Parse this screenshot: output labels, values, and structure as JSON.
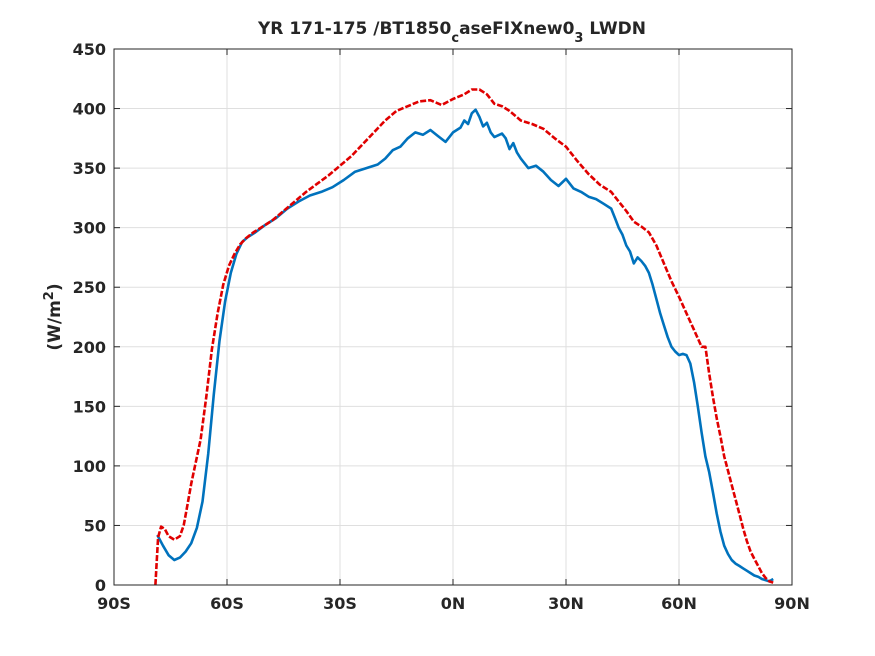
{
  "chart_data": {
    "type": "line",
    "title_main": "YR 171-175 /BT1850",
    "title_sub1": "c",
    "title_mid": "aseFIXnew0",
    "title_sub2": "3",
    "title_end": " LWDN",
    "xlabel": "",
    "ylabel_prefix": "(W/m",
    "ylabel_sup": "2",
    "ylabel_suffix": ")",
    "xlim": [
      -90,
      90
    ],
    "ylim": [
      0,
      450
    ],
    "grid": true,
    "xticks": [
      {
        "value": -90,
        "label": "90S"
      },
      {
        "value": -60,
        "label": "60S"
      },
      {
        "value": -30,
        "label": "30S"
      },
      {
        "value": 0,
        "label": "0N"
      },
      {
        "value": 30,
        "label": "30N"
      },
      {
        "value": 60,
        "label": "60N"
      },
      {
        "value": 90,
        "label": "90N"
      }
    ],
    "yticks": [
      0,
      50,
      100,
      150,
      200,
      250,
      300,
      350,
      400,
      450
    ],
    "series": [
      {
        "color": "#0072bd",
        "dash": "solid",
        "points": [
          [
            -78.5,
            42
          ],
          [
            -77,
            33
          ],
          [
            -75.5,
            25
          ],
          [
            -74,
            21
          ],
          [
            -72.5,
            23
          ],
          [
            -71,
            28
          ],
          [
            -69.5,
            35
          ],
          [
            -68,
            48
          ],
          [
            -66.5,
            70
          ],
          [
            -65,
            110
          ],
          [
            -63.5,
            160
          ],
          [
            -62,
            205
          ],
          [
            -60.5,
            238
          ],
          [
            -59,
            262
          ],
          [
            -57.5,
            278
          ],
          [
            -56,
            288
          ],
          [
            -54.5,
            292
          ],
          [
            -52.5,
            296
          ],
          [
            -50,
            302
          ],
          [
            -47,
            308
          ],
          [
            -44,
            316
          ],
          [
            -41,
            322
          ],
          [
            -38,
            327
          ],
          [
            -35,
            330
          ],
          [
            -32,
            334
          ],
          [
            -29,
            340
          ],
          [
            -26,
            347
          ],
          [
            -23,
            350
          ],
          [
            -20,
            353
          ],
          [
            -18,
            358
          ],
          [
            -16,
            365
          ],
          [
            -14,
            368
          ],
          [
            -12,
            375
          ],
          [
            -10,
            380
          ],
          [
            -8,
            378
          ],
          [
            -6,
            382
          ],
          [
            -4,
            377
          ],
          [
            -2,
            372
          ],
          [
            0,
            380
          ],
          [
            2,
            384
          ],
          [
            3,
            390
          ],
          [
            4,
            387
          ],
          [
            5,
            396
          ],
          [
            6,
            399
          ],
          [
            7,
            393
          ],
          [
            8,
            385
          ],
          [
            9,
            388
          ],
          [
            10,
            380
          ],
          [
            11,
            376
          ],
          [
            13,
            379
          ],
          [
            14,
            375
          ],
          [
            15,
            366
          ],
          [
            16,
            371
          ],
          [
            17,
            363
          ],
          [
            18,
            358
          ],
          [
            20,
            350
          ],
          [
            22,
            352
          ],
          [
            24,
            347
          ],
          [
            26,
            340
          ],
          [
            28,
            335
          ],
          [
            30,
            341
          ],
          [
            32,
            333
          ],
          [
            34,
            330
          ],
          [
            36,
            326
          ],
          [
            38,
            324
          ],
          [
            40,
            320
          ],
          [
            42,
            316
          ],
          [
            43,
            308
          ],
          [
            44,
            300
          ],
          [
            45,
            294
          ],
          [
            46,
            285
          ],
          [
            47,
            280
          ],
          [
            48,
            270
          ],
          [
            49,
            275
          ],
          [
            50,
            272
          ],
          [
            51,
            268
          ],
          [
            52,
            262
          ],
          [
            53,
            252
          ],
          [
            54,
            240
          ],
          [
            55,
            228
          ],
          [
            56,
            218
          ],
          [
            57,
            208
          ],
          [
            58,
            200
          ],
          [
            59,
            196
          ],
          [
            60,
            193
          ],
          [
            61,
            194
          ],
          [
            62,
            193
          ],
          [
            63,
            186
          ],
          [
            64,
            170
          ],
          [
            65,
            150
          ],
          [
            66,
            128
          ],
          [
            67,
            108
          ],
          [
            68,
            95
          ],
          [
            69,
            78
          ],
          [
            70,
            60
          ],
          [
            71,
            45
          ],
          [
            72,
            33
          ],
          [
            73,
            26
          ],
          [
            74,
            21
          ],
          [
            75,
            18
          ],
          [
            76,
            16
          ],
          [
            77,
            14
          ],
          [
            78,
            12
          ],
          [
            79,
            10
          ],
          [
            80,
            8
          ],
          [
            81,
            7
          ],
          [
            82,
            5
          ],
          [
            83,
            4
          ],
          [
            84,
            3
          ],
          [
            85,
            5
          ]
        ]
      },
      {
        "color": "#e00000",
        "dash": "dashed",
        "points": [
          [
            -79,
            0
          ],
          [
            -78.7,
            18
          ],
          [
            -78.3,
            40
          ],
          [
            -77.5,
            49
          ],
          [
            -76.5,
            47
          ],
          [
            -75.5,
            41
          ],
          [
            -74,
            38
          ],
          [
            -72.5,
            41
          ],
          [
            -71.5,
            50
          ],
          [
            -70.5,
            67
          ],
          [
            -69.5,
            85
          ],
          [
            -68.5,
            100
          ],
          [
            -67,
            122
          ],
          [
            -65.5,
            158
          ],
          [
            -64,
            198
          ],
          [
            -62.5,
            228
          ],
          [
            -61,
            252
          ],
          [
            -59.5,
            268
          ],
          [
            -58,
            278
          ],
          [
            -56.5,
            286
          ],
          [
            -55,
            291
          ],
          [
            -53,
            296
          ],
          [
            -51,
            300
          ],
          [
            -48,
            306
          ],
          [
            -45,
            314
          ],
          [
            -42,
            322
          ],
          [
            -39,
            330
          ],
          [
            -36,
            337
          ],
          [
            -33,
            344
          ],
          [
            -30,
            352
          ],
          [
            -27,
            360
          ],
          [
            -24,
            370
          ],
          [
            -21,
            380
          ],
          [
            -18,
            390
          ],
          [
            -15,
            398
          ],
          [
            -12,
            402
          ],
          [
            -9,
            406
          ],
          [
            -6,
            407
          ],
          [
            -3,
            403
          ],
          [
            0,
            408
          ],
          [
            3,
            412
          ],
          [
            5,
            416
          ],
          [
            7,
            416
          ],
          [
            9,
            412
          ],
          [
            11,
            404
          ],
          [
            13,
            402
          ],
          [
            15,
            398
          ],
          [
            18,
            390
          ],
          [
            21,
            387
          ],
          [
            24,
            383
          ],
          [
            27,
            375
          ],
          [
            30,
            368
          ],
          [
            33,
            356
          ],
          [
            36,
            345
          ],
          [
            39,
            336
          ],
          [
            42,
            330
          ],
          [
            44,
            322
          ],
          [
            46,
            314
          ],
          [
            48,
            305
          ],
          [
            50,
            301
          ],
          [
            52,
            296
          ],
          [
            54,
            285
          ],
          [
            56,
            270
          ],
          [
            58,
            255
          ],
          [
            60,
            242
          ],
          [
            62,
            228
          ],
          [
            64,
            214
          ],
          [
            66,
            200
          ],
          [
            67,
            200
          ],
          [
            68,
            178
          ],
          [
            69,
            158
          ],
          [
            70,
            140
          ],
          [
            71,
            125
          ],
          [
            72,
            108
          ],
          [
            73,
            96
          ],
          [
            74,
            84
          ],
          [
            75,
            72
          ],
          [
            76,
            60
          ],
          [
            77,
            48
          ],
          [
            78,
            37
          ],
          [
            79,
            28
          ],
          [
            80,
            22
          ],
          [
            81,
            16
          ],
          [
            82,
            10
          ],
          [
            83,
            6
          ],
          [
            84,
            3
          ],
          [
            85,
            2
          ]
        ]
      }
    ]
  }
}
